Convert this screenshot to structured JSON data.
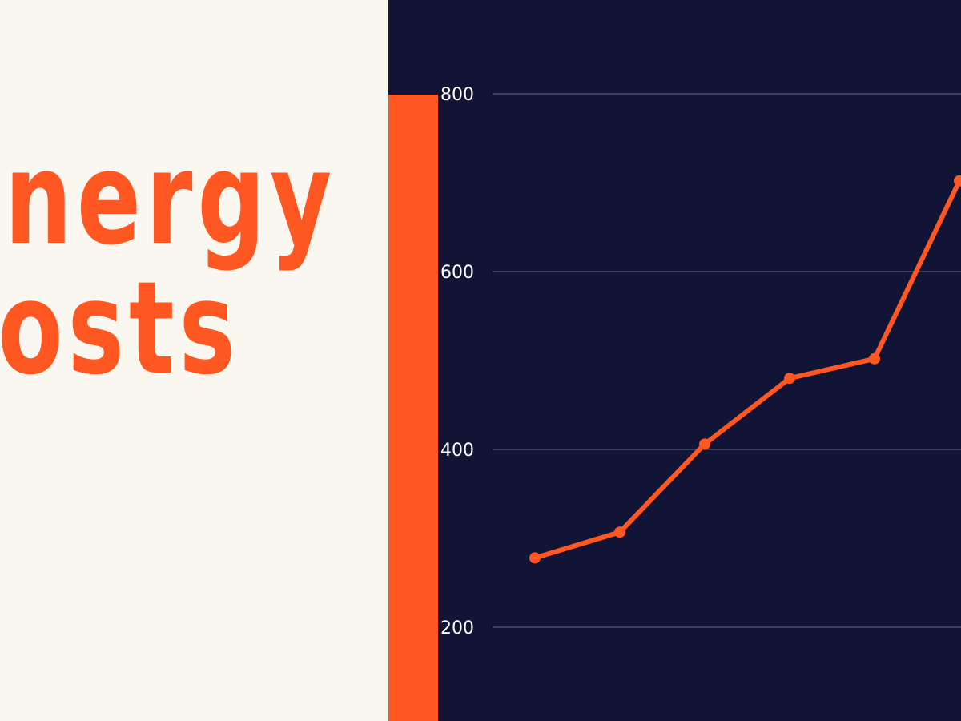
{
  "headline": {
    "line1": "nergy",
    "line2": "osts"
  },
  "colors": {
    "accent": "#ff5722",
    "panel_dark": "#121435",
    "background_light": "#f9f7ef",
    "grid": "#4a4c6e"
  },
  "chart_data": {
    "type": "line",
    "title": "",
    "xlabel": "",
    "ylabel": "",
    "ylim": [
      100,
      800
    ],
    "y_ticks": [
      "200",
      "400",
      "600",
      "800"
    ],
    "grid": true,
    "x": [
      1,
      2,
      3,
      4,
      5,
      6
    ],
    "series": [
      {
        "values": [
          278,
          307,
          406,
          480,
          502,
          702
        ],
        "color": "#ff5722"
      }
    ]
  }
}
